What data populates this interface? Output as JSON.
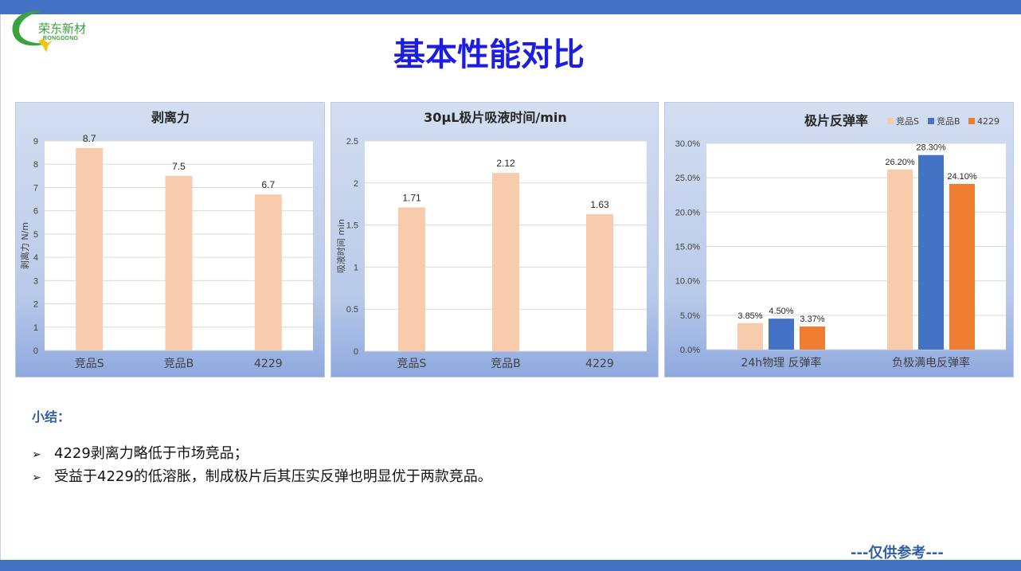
{
  "logo": {
    "name_cn": "荣东新材",
    "name_en": "RONGDONG"
  },
  "page_title": "基本性能对比",
  "summary": {
    "title": "小结：",
    "bullets": [
      "4229剥离力略低于市场竞品；",
      "受益于4229的低溶胀，制成极片后其压实反弹也明显优于两款竞品。"
    ]
  },
  "footer_note": "---仅供参考---",
  "colors": {
    "series_s": "#f8cbad",
    "series_b": "#4472c4",
    "series_4229": "#ed7d31",
    "title_blue": "#1d1de0",
    "bar_blue": "#4472c4"
  },
  "chart_data": [
    {
      "type": "bar",
      "title": "剥离力",
      "ylabel": "剥离力 N/m",
      "categories": [
        "竞品S",
        "竞品B",
        "4229"
      ],
      "values": [
        8.7,
        7.5,
        6.7
      ],
      "value_labels": [
        "8.7",
        "7.5",
        "6.7"
      ],
      "ylim": [
        0,
        9
      ],
      "yticks": [
        0,
        1,
        2,
        3,
        4,
        5,
        6,
        7,
        8,
        9
      ],
      "ytick_labels": [
        "0",
        "1",
        "2",
        "3",
        "4",
        "5",
        "6",
        "7",
        "8",
        "9"
      ],
      "color": "#f8cbad",
      "grid": true
    },
    {
      "type": "bar",
      "title": "30μL极片吸液时间/min",
      "ylabel": "吸液时间 min",
      "categories": [
        "竞品S",
        "竞品B",
        "4229"
      ],
      "values": [
        1.71,
        2.12,
        1.63
      ],
      "value_labels": [
        "1.71",
        "2.12",
        "1.63"
      ],
      "ylim": [
        0,
        2.5
      ],
      "yticks": [
        0,
        0.5,
        1,
        1.5,
        2,
        2.5
      ],
      "ytick_labels": [
        "0",
        "0.5",
        "1",
        "1.5",
        "2",
        "2.5"
      ],
      "color": "#f8cbad",
      "grid": true
    },
    {
      "type": "bar",
      "title": "极片反弹率",
      "categories": [
        "24h物理 反弹率",
        "负极满电反弹率"
      ],
      "series": [
        {
          "name": "竞品S",
          "values": [
            3.85,
            26.2
          ],
          "value_labels": [
            "3.85%",
            "26.20%"
          ],
          "color": "#f8cbad"
        },
        {
          "name": "竞品B",
          "values": [
            4.5,
            28.3
          ],
          "value_labels": [
            "4.50%",
            "28.30%"
          ],
          "color": "#4472c4"
        },
        {
          "name": "4229",
          "values": [
            3.37,
            24.1
          ],
          "value_labels": [
            "3.37%",
            "24.10%"
          ],
          "color": "#ed7d31"
        }
      ],
      "ylim": [
        0,
        30
      ],
      "yticks": [
        0,
        5,
        10,
        15,
        20,
        25,
        30
      ],
      "ytick_labels": [
        "0.0%",
        "5.0%",
        "10.0%",
        "15.0%",
        "20.0%",
        "25.0%",
        "30.0%"
      ],
      "legend": "top-right",
      "grid": true
    }
  ]
}
